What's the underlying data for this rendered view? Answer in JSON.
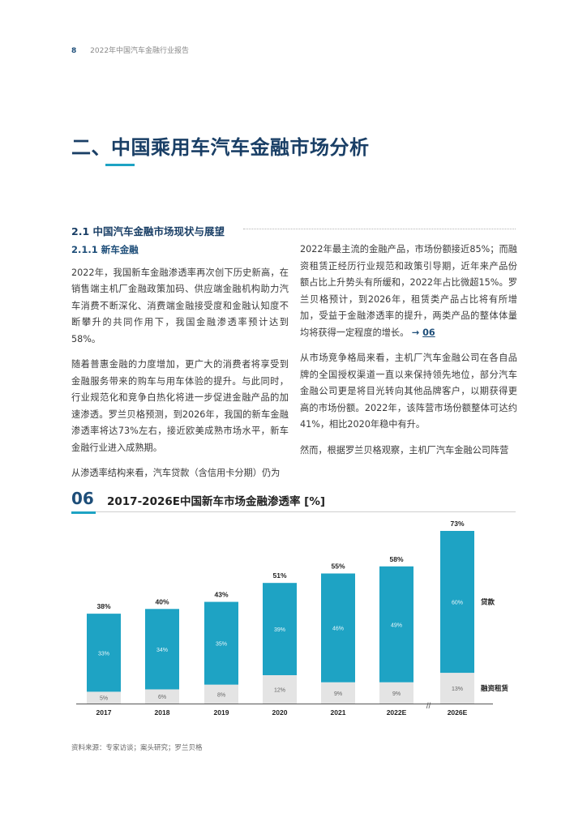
{
  "header": {
    "page_number": "8",
    "running_title": "2022年中国汽车金融行业报告"
  },
  "section_title": "二、中国乘用车汽车金融市场分析",
  "subsection_title": "2.1 中国汽车金融市场现状与展望",
  "left_column": {
    "heading": "2.1.1 新车金融",
    "p1": "2022年，我国新车金融渗透率再次创下历史新高，在销售端主机厂金融政策加码、供应端金融机构助力汽车消费不断深化、消费端金融接受度和金融认知度不断攀升的共同作用下，我国金融渗透率预计达到58%。",
    "p2": "随着普惠金融的力度增加，更广大的消费者将享受到金融服务带来的购车与用车体验的提升。与此同时，行业规范化和竞争白热化将进一步促进金融产品的加速渗透。罗兰贝格预测，到2026年，我国的新车金融渗透率将达73%左右，接近欧美成熟市场水平，新车金融行业进入成熟期。",
    "p3": "从渗透率结构来看，汽车贷款（含信用卡分期）仍为"
  },
  "right_column": {
    "p1": "2022年最主流的金融产品，市场份额接近85%；而融资租赁正经历行业规范和政策引导期，近年来产品份额占比上升势头有所缓和，2022年占比微超15%。罗兰贝格预计，到2026年，租赁类产品占比将有所增加，受益于金融渗透率的提升，两类产品的整体体量均将获得一定程度的增长。",
    "ref_arrow": "→",
    "ref_num": "06",
    "p2": "从市场竞争格局来看，主机厂汽车金融公司在各自品牌的全国授权渠道一直以来保持领先地位，部分汽车金融公司更是将目光转向其他品牌客户，以期获得更高的市场份额。2022年，该阵营市场份额整体可达约41%，相比2020年稳中有升。",
    "p3": "然而，根据罗兰贝格观察，主机厂汽车金融公司阵营"
  },
  "figure": {
    "number": "06",
    "title": "2017-2026E中国新车市场金融渗透率 [%]"
  },
  "chart_data": {
    "type": "bar",
    "stacked": true,
    "title": "2017-2026E中国新车市场金融渗透率 [%]",
    "categories": [
      "2017",
      "2018",
      "2019",
      "2020",
      "2021",
      "2022E",
      "2026E"
    ],
    "series": [
      {
        "name": "融资租赁",
        "values": [
          5,
          6,
          8,
          12,
          9,
          9,
          13
        ],
        "labels": [
          "5%",
          "6%",
          "8%",
          "12%",
          "9%",
          "9%",
          "13%"
        ],
        "color": "#e4e4e4"
      },
      {
        "name": "贷款",
        "values": [
          33,
          34,
          35,
          39,
          46,
          49,
          60
        ],
        "labels": [
          "33%",
          "34%",
          "35%",
          "39%",
          "46%",
          "49%",
          "60%"
        ],
        "color": "#1ea3c4"
      }
    ],
    "totals": [
      "38%",
      "40%",
      "43%",
      "51%",
      "55%",
      "58%",
      "73%"
    ],
    "axis_break_before": "2026E",
    "axis_break_symbol": "//",
    "ylim": [
      0,
      73
    ],
    "legend_position": "right"
  },
  "source": "资料来源：专家访谈；案头研究；罗兰贝格"
}
